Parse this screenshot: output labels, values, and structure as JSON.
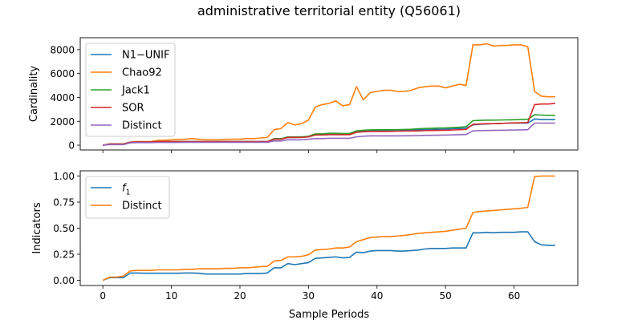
{
  "chart_data": {
    "title": "administrative territorial entity (Q56061)",
    "xlabel": "Sample Periods",
    "x_ticks": [
      0,
      10,
      20,
      30,
      40,
      50,
      60
    ],
    "xlim": [
      -3.3,
      69.3
    ],
    "panels": [
      {
        "type": "line",
        "ylabel": "Cardinality",
        "ylim": [
          -400,
          9000
        ],
        "y_ticks": [
          0,
          2000,
          4000,
          6000,
          8000
        ],
        "legend_position": "upper-left",
        "series": [
          {
            "name": "N1−UNIF",
            "color": "#1f77b4",
            "values": [
              0,
              100,
              100,
              100,
              250,
              280,
              280,
              280,
              300,
              300,
              300,
              300,
              300,
              300,
              300,
              300,
              300,
              300,
              300,
              300,
              300,
              300,
              300,
              300,
              300,
              500,
              500,
              640,
              640,
              650,
              700,
              870,
              870,
              900,
              900,
              900,
              900,
              1100,
              1150,
              1200,
              1200,
              1200,
              1200,
              1200,
              1250,
              1250,
              1300,
              1300,
              1320,
              1330,
              1350,
              1380,
              1400,
              1420,
              1700,
              1750,
              1780,
              1800,
              1820,
              1850,
              1850,
              1850,
              1850,
              2200,
              2150,
              2150,
              2150
            ]
          },
          {
            "name": "Chao92",
            "color": "#ff7f0e",
            "values": [
              0,
              100,
              100,
              100,
              250,
              300,
              300,
              300,
              400,
              420,
              450,
              480,
              500,
              550,
              500,
              450,
              450,
              450,
              480,
              500,
              500,
              550,
              550,
              600,
              650,
              1300,
              1400,
              1900,
              1700,
              1800,
              2100,
              3200,
              3400,
              3500,
              3700,
              3300,
              3400,
              4900,
              3800,
              4400,
              4500,
              4600,
              4600,
              4500,
              4500,
              4600,
              4800,
              4900,
              4950,
              4950,
              4800,
              4950,
              5100,
              5000,
              8400,
              8400,
              8500,
              8300,
              8350,
              8350,
              8400,
              8400,
              8250,
              4500,
              4100,
              4050,
              4050
            ]
          },
          {
            "name": "Jack1",
            "color": "#2ca02c",
            "values": [
              0,
              100,
              100,
              100,
              250,
              280,
              280,
              280,
              300,
              300,
              300,
              300,
              300,
              300,
              300,
              300,
              300,
              300,
              300,
              300,
              300,
              300,
              300,
              300,
              300,
              550,
              550,
              700,
              700,
              700,
              750,
              950,
              950,
              1000,
              1000,
              980,
              980,
              1200,
              1250,
              1280,
              1290,
              1290,
              1300,
              1300,
              1320,
              1330,
              1380,
              1400,
              1420,
              1440,
              1450,
              1480,
              1500,
              1550,
              2050,
              2080,
              2100,
              2100,
              2110,
              2120,
              2130,
              2150,
              2170,
              2550,
              2520,
              2500,
              2500
            ]
          },
          {
            "name": "SOR",
            "color": "#d62728",
            "values": [
              0,
              100,
              100,
              100,
              250,
              280,
              280,
              280,
              300,
              300,
              300,
              300,
              300,
              300,
              300,
              300,
              300,
              300,
              300,
              300,
              300,
              300,
              300,
              300,
              300,
              500,
              500,
              650,
              650,
              650,
              700,
              850,
              850,
              880,
              880,
              880,
              880,
              1080,
              1120,
              1150,
              1150,
              1150,
              1160,
              1170,
              1180,
              1190,
              1200,
              1220,
              1230,
              1240,
              1250,
              1270,
              1300,
              1320,
              1750,
              1780,
              1800,
              1800,
              1820,
              1850,
              1870,
              1880,
              1900,
              3400,
              3450,
              3450,
              3500
            ]
          },
          {
            "name": "Distinct",
            "color": "#9467bd",
            "values": [
              0,
              50,
              50,
              50,
              200,
              220,
              220,
              220,
              230,
              230,
              230,
              230,
              240,
              240,
              240,
              240,
              240,
              240,
              240,
              240,
              240,
              240,
              240,
              240,
              240,
              350,
              350,
              450,
              450,
              450,
              500,
              550,
              550,
              580,
              580,
              580,
              580,
              700,
              750,
              780,
              780,
              780,
              780,
              780,
              790,
              790,
              800,
              820,
              830,
              840,
              850,
              860,
              880,
              900,
              1200,
              1220,
              1230,
              1240,
              1250,
              1260,
              1270,
              1280,
              1300,
              1850,
              1850,
              1850,
              1850
            ]
          }
        ]
      },
      {
        "type": "line",
        "ylabel": "Indicators",
        "ylim": [
          -0.05,
          1.05
        ],
        "y_ticks": [
          "0.00",
          "0.25",
          "0.50",
          "0.75",
          "1.00"
        ],
        "legend_position": "upper-left",
        "series": [
          {
            "name": "f",
            "name_subscript": "1",
            "color": "#1f77b4",
            "values": [
              0,
              0.025,
              0.025,
              0.025,
              0.07,
              0.07,
              0.068,
              0.068,
              0.068,
              0.068,
              0.068,
              0.068,
              0.07,
              0.07,
              0.068,
              0.06,
              0.06,
              0.06,
              0.06,
              0.06,
              0.06,
              0.065,
              0.065,
              0.065,
              0.07,
              0.12,
              0.12,
              0.16,
              0.15,
              0.16,
              0.17,
              0.21,
              0.215,
              0.22,
              0.225,
              0.215,
              0.22,
              0.27,
              0.265,
              0.28,
              0.285,
              0.285,
              0.285,
              0.28,
              0.28,
              0.285,
              0.29,
              0.3,
              0.305,
              0.305,
              0.305,
              0.31,
              0.31,
              0.31,
              0.455,
              0.455,
              0.46,
              0.455,
              0.46,
              0.46,
              0.46,
              0.465,
              0.465,
              0.37,
              0.34,
              0.335,
              0.335
            ]
          },
          {
            "name": "Distinct",
            "color": "#ff7f0e",
            "values": [
              0,
              0.03,
              0.03,
              0.04,
              0.09,
              0.095,
              0.095,
              0.095,
              0.1,
              0.1,
              0.1,
              0.1,
              0.105,
              0.105,
              0.11,
              0.11,
              0.11,
              0.11,
              0.115,
              0.115,
              0.12,
              0.12,
              0.125,
              0.13,
              0.135,
              0.185,
              0.19,
              0.225,
              0.225,
              0.23,
              0.245,
              0.29,
              0.295,
              0.3,
              0.31,
              0.31,
              0.32,
              0.37,
              0.39,
              0.41,
              0.415,
              0.42,
              0.42,
              0.425,
              0.43,
              0.44,
              0.45,
              0.455,
              0.46,
              0.465,
              0.47,
              0.48,
              0.49,
              0.5,
              0.65,
              0.66,
              0.665,
              0.67,
              0.675,
              0.68,
              0.685,
              0.69,
              0.7,
              0.995,
              1.0,
              1.0,
              1.0
            ]
          }
        ]
      }
    ]
  }
}
